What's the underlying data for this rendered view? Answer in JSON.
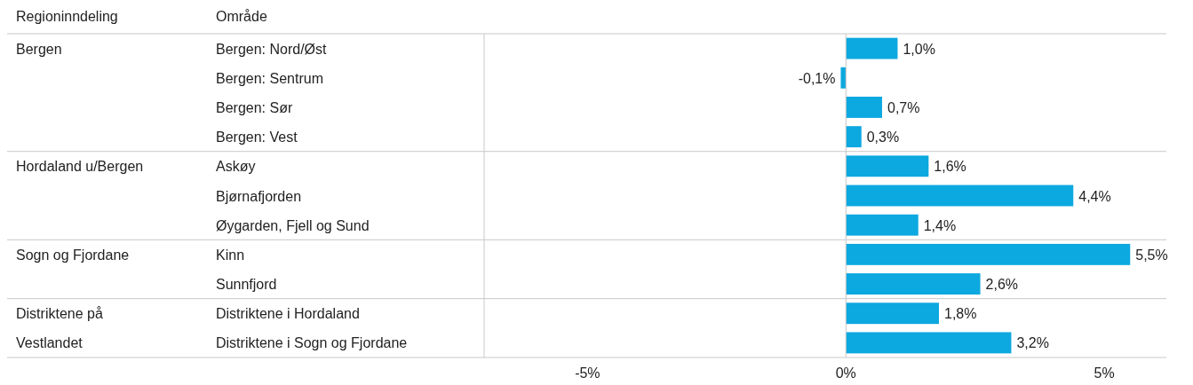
{
  "chart_data": {
    "type": "bar",
    "orientation": "horizontal",
    "ylabel": "Område",
    "categories": [
      "Bergen: Nord/Øst",
      "Bergen: Sentrum",
      "Bergen: Sør",
      "Bergen: Vest",
      "Askøy",
      "Bjørnafjorden",
      "Øygarden, Fjell og Sund",
      "Kinn",
      "Sunnfjord",
      "Distriktene i Hordaland",
      "Distriktene i Sogn og Fjordane"
    ],
    "values": [
      1.0,
      -0.1,
      0.7,
      0.3,
      1.6,
      4.4,
      1.4,
      5.5,
      2.6,
      1.8,
      3.2
    ],
    "value_labels": [
      "1,0%",
      "-0,1%",
      "0,7%",
      "0,3%",
      "1,6%",
      "4,4%",
      "1,4%",
      "5,5%",
      "2,6%",
      "1,8%",
      "3,2%"
    ],
    "color": "#0ca8e0",
    "xlim": [
      -7,
      6.2
    ],
    "xticks": [
      {
        "value": -5,
        "label": "-5%"
      },
      {
        "value": 0,
        "label": "0%"
      },
      {
        "value": 5,
        "label": "5%"
      }
    ],
    "annotations": [
      "Regioninndeling",
      "Bergen",
      "Hordaland u/Bergen",
      "Sogn og Fjordane",
      "Distriktene på Vestlandet"
    ]
  }
}
